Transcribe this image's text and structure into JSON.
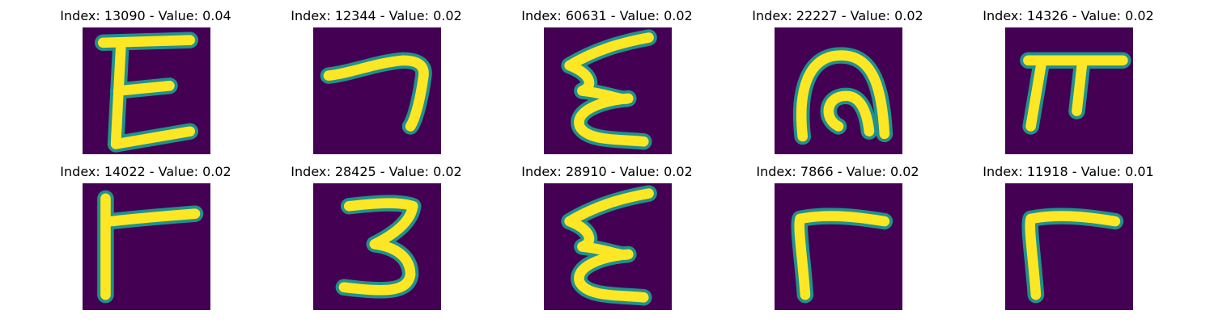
{
  "figure": {
    "panels": [
      {
        "title": "Index: 13090 - Value: 0.04",
        "glyph": "E"
      },
      {
        "title": "Index: 12344 - Value: 0.02",
        "glyph": "stroke-7"
      },
      {
        "title": "Index: 60631 - Value: 0.02",
        "glyph": "E-wavy"
      },
      {
        "title": "Index: 22227 - Value: 0.02",
        "glyph": "arch"
      },
      {
        "title": "Index: 14326 - Value: 0.02",
        "glyph": "pi"
      },
      {
        "title": "Index: 14022 - Value: 0.02",
        "glyph": "r-shape"
      },
      {
        "title": "Index: 28425 - Value: 0.02",
        "glyph": "3"
      },
      {
        "title": "Index: 28910 - Value: 0.02",
        "glyph": "E-wavy"
      },
      {
        "title": "Index: 7866 - Value: 0.02",
        "glyph": "r-curve"
      },
      {
        "title": "Index: 11918 - Value: 0.01",
        "glyph": "r-curve"
      }
    ]
  },
  "colors": {
    "background": "#440154",
    "stroke_core": "#fde725",
    "stroke_edge": "#21918c"
  }
}
